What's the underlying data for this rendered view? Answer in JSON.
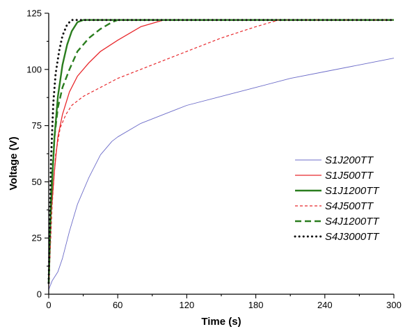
{
  "chart_data": {
    "type": "line",
    "title": "",
    "xlabel": "Time (s)",
    "ylabel": "Voltage (V)",
    "xlim": [
      0,
      300
    ],
    "ylim": [
      0,
      125
    ],
    "xticks": [
      0,
      60,
      120,
      180,
      240,
      300
    ],
    "yticks": [
      0,
      25,
      50,
      75,
      100,
      125
    ],
    "grid": false,
    "legend_position": "right",
    "series": [
      {
        "name": "S1J200TT",
        "color": "#6b6bc8",
        "style": "solid-thin",
        "x": [
          0,
          3,
          8,
          12,
          18,
          25,
          35,
          45,
          55,
          60,
          80,
          100,
          120,
          150,
          180,
          210,
          240,
          270,
          300
        ],
        "y": [
          2,
          6,
          10,
          16,
          28,
          40,
          52,
          62,
          68,
          70,
          76,
          80,
          84,
          88,
          92,
          96,
          99,
          102,
          105
        ]
      },
      {
        "name": "S1J500TT",
        "color": "#e8282c",
        "style": "solid",
        "x": [
          0,
          2,
          5,
          8,
          12,
          18,
          25,
          35,
          45,
          60,
          80,
          100
        ],
        "y": [
          5,
          35,
          55,
          70,
          80,
          90,
          97,
          103,
          108,
          113,
          119,
          122
        ]
      },
      {
        "name": "S1J1200TT",
        "color": "#2a7d1e",
        "style": "solid-thick",
        "x": [
          0,
          2,
          5,
          8,
          12,
          16,
          20,
          25,
          30
        ],
        "y": [
          5,
          40,
          70,
          88,
          102,
          111,
          117,
          121,
          122
        ]
      },
      {
        "name": "S4J500TT",
        "color": "#e8282c",
        "style": "dashed",
        "x": [
          0,
          3,
          6,
          10,
          15,
          20,
          30,
          45,
          60,
          90,
          120,
          150,
          180,
          200
        ],
        "y": [
          3,
          40,
          62,
          74,
          80,
          84,
          88,
          92,
          96,
          102,
          108,
          114,
          119,
          122
        ]
      },
      {
        "name": "S4J1200TT",
        "color": "#2a7d1e",
        "style": "dashed-thick",
        "x": [
          0,
          2,
          5,
          8,
          12,
          18,
          25,
          35,
          45,
          55,
          60
        ],
        "y": [
          5,
          45,
          70,
          83,
          92,
          100,
          108,
          114,
          118,
          121,
          122
        ]
      },
      {
        "name": "S4J3000TT",
        "color": "#111111",
        "style": "dotted",
        "x": [
          0,
          2,
          4,
          6,
          9,
          12,
          16,
          20
        ],
        "y": [
          5,
          60,
          85,
          98,
          108,
          115,
          120,
          122
        ]
      }
    ]
  }
}
